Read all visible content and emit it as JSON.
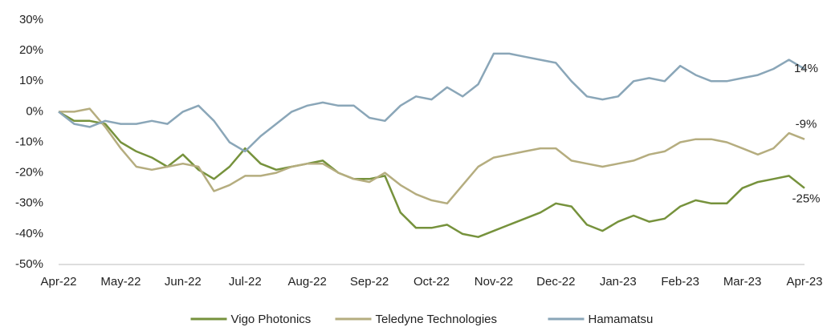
{
  "chart_data": {
    "type": "line",
    "categories": [
      "Apr-22",
      null,
      null,
      null,
      "May-22",
      null,
      null,
      null,
      "Jun-22",
      null,
      null,
      null,
      "Jul-22",
      null,
      null,
      null,
      "Aug-22",
      null,
      null,
      null,
      "Sep-22",
      null,
      null,
      null,
      "Oct-22",
      null,
      null,
      null,
      "Nov-22",
      null,
      null,
      null,
      "Dec-22",
      null,
      null,
      null,
      "Jan-23",
      null,
      null,
      null,
      "Feb-23",
      null,
      null,
      null,
      "Mar-23",
      null,
      null,
      null,
      "Apr-23"
    ],
    "series": [
      {
        "name": "Vigo Photonics",
        "color": "#76923c",
        "values": [
          0,
          -3,
          -3,
          -4,
          -10,
          -13,
          -15,
          -18,
          -14,
          -19,
          -22,
          -18,
          -12,
          -17,
          -19,
          -18,
          -17,
          -16,
          -20,
          -22,
          -22,
          -21,
          -33,
          -38,
          -38,
          -37,
          -40,
          -41,
          -39,
          -37,
          -35,
          -33,
          -30,
          -31,
          -37,
          -39,
          -36,
          -34,
          -36,
          -35,
          -31,
          -29,
          -30,
          -30,
          -25,
          -23,
          -22,
          -21,
          -25
        ],
        "value_labels": [
          null,
          null,
          null,
          null,
          null,
          null,
          null,
          null,
          null,
          null,
          null,
          null,
          null,
          null,
          null,
          null,
          null,
          null,
          null,
          null,
          null,
          null,
          null,
          null,
          null,
          null,
          null,
          null,
          null,
          null,
          null,
          null,
          null,
          null,
          null,
          null,
          null,
          null,
          null,
          null,
          null,
          null,
          null,
          null,
          null,
          null,
          null,
          null,
          "-25%"
        ]
      },
      {
        "name": "Teledyne Technologies",
        "color": "#b5ad7f",
        "values": [
          0,
          0,
          1,
          -5,
          -12,
          -18,
          -19,
          -18,
          -17,
          -18,
          -26,
          -24,
          -21,
          -21,
          -20,
          -18,
          -17,
          -17,
          -20,
          -22,
          -23,
          -20,
          -24,
          -27,
          -29,
          -30,
          -24,
          -18,
          -15,
          -14,
          -13,
          -12,
          -12,
          -16,
          -17,
          -18,
          -17,
          -16,
          -14,
          -13,
          -10,
          -9,
          -9,
          -10,
          -12,
          -14,
          -12,
          -7,
          -9
        ],
        "value_labels": [
          null,
          null,
          null,
          null,
          null,
          null,
          null,
          null,
          null,
          null,
          null,
          null,
          null,
          null,
          null,
          null,
          null,
          null,
          null,
          null,
          null,
          null,
          null,
          null,
          null,
          null,
          null,
          null,
          null,
          null,
          null,
          null,
          null,
          null,
          null,
          null,
          null,
          null,
          null,
          null,
          null,
          null,
          null,
          null,
          null,
          null,
          null,
          null,
          "-9%"
        ]
      },
      {
        "name": "Hamamatsu",
        "color": "#8aa6b8",
        "values": [
          0,
          -4,
          -5,
          -3,
          -4,
          -4,
          -3,
          -4,
          0,
          2,
          -3,
          -10,
          -13,
          -8,
          -4,
          0,
          2,
          3,
          2,
          2,
          -2,
          -3,
          2,
          5,
          4,
          8,
          5,
          9,
          19,
          19,
          18,
          17,
          16,
          10,
          5,
          4,
          5,
          10,
          11,
          10,
          15,
          12,
          10,
          10,
          11,
          12,
          14,
          17,
          14
        ],
        "value_labels": [
          null,
          null,
          null,
          null,
          null,
          null,
          null,
          null,
          null,
          null,
          null,
          null,
          null,
          null,
          null,
          null,
          null,
          null,
          null,
          null,
          null,
          null,
          null,
          null,
          null,
          null,
          null,
          null,
          null,
          null,
          null,
          null,
          null,
          null,
          null,
          null,
          null,
          null,
          null,
          null,
          null,
          null,
          null,
          null,
          null,
          null,
          null,
          null,
          "14%"
        ]
      }
    ],
    "ylim": [
      -50,
      30
    ],
    "yticks": [
      {
        "value": -50,
        "label": "-50%"
      },
      {
        "value": -40,
        "label": "-40%"
      },
      {
        "value": -30,
        "label": "-30%"
      },
      {
        "value": -20,
        "label": "-20%"
      },
      {
        "value": -10,
        "label": "-10%"
      },
      {
        "value": 0,
        "label": "0%"
      },
      {
        "value": 10,
        "label": "10%"
      },
      {
        "value": 20,
        "label": "20%"
      },
      {
        "value": 30,
        "label": "30%"
      }
    ],
    "grid": false,
    "legend": "bottom"
  }
}
